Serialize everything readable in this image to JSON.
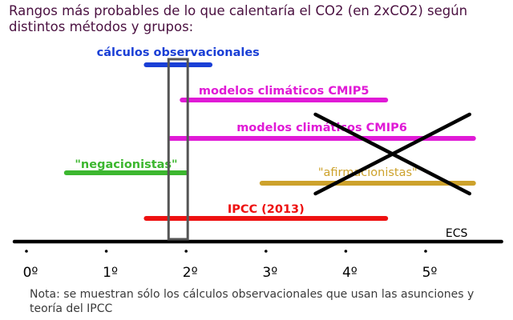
{
  "chart_data": {
    "type": "range",
    "title": "Rangos más probables de lo que calentaría el CO2 (en 2xCO2) según distintos métodos y grupos:",
    "xlabel": "ECS",
    "xlim": [
      -0.1,
      5.95
    ],
    "ticks": [
      {
        "value": 0,
        "label": "0º"
      },
      {
        "value": 1,
        "label": "1º"
      },
      {
        "value": 2,
        "label": "2º"
      },
      {
        "value": 3,
        "label": "3º"
      },
      {
        "value": 4,
        "label": "4º"
      },
      {
        "value": 5,
        "label": "5º"
      }
    ],
    "ranges": [
      {
        "label": "cálculos observacionales",
        "low": 1.5,
        "high": 2.3,
        "color": "#1a3fd6",
        "label_weight": "bold",
        "crossed": false
      },
      {
        "label": "modelos climáticos  CMIP5",
        "low": 1.95,
        "high": 4.5,
        "color": "#e01ad6",
        "label_weight": "bold",
        "crossed": false
      },
      {
        "label": "modelos climáticos  CMIP6",
        "low": 1.8,
        "high": 5.6,
        "color": "#e01ad6",
        "label_weight": "bold",
        "crossed": true
      },
      {
        "label": "\"negacionistas\"",
        "low": 0.5,
        "high": 2.0,
        "color": "#3cb72f",
        "label_weight": "bold",
        "crossed": false
      },
      {
        "label": "\"afirmacionistas\"",
        "low": 2.95,
        "high": 5.6,
        "color": "#cda22c",
        "label_weight": "normal",
        "crossed": true
      },
      {
        "label": "IPCC   (2013)",
        "low": 1.5,
        "high": 4.5,
        "color": "#ee1111",
        "label_weight": "bold",
        "crossed": false
      }
    ],
    "highlight_box": {
      "low": 1.78,
      "high": 2.02
    }
  },
  "footnote": "Nota: se muestran sólo los cálculos observacionales que usan las asunciones y teoría del IPCC"
}
